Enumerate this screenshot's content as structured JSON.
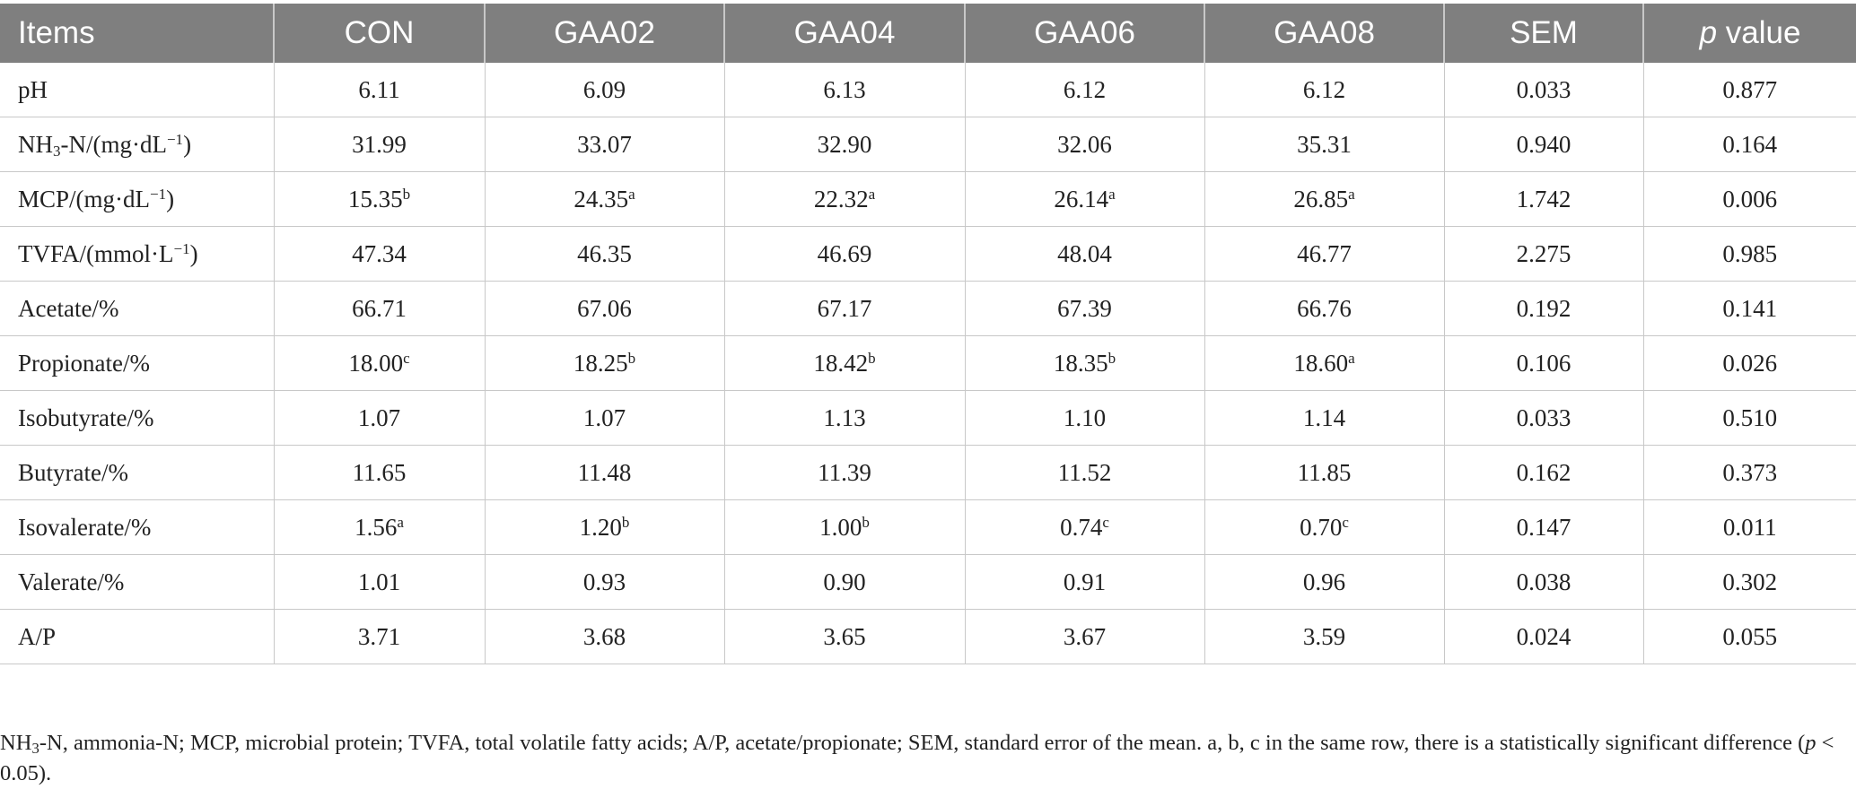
{
  "table": {
    "headers": [
      "Items",
      "CON",
      "GAA02",
      "GAA04",
      "GAA06",
      "GAA08",
      "SEM"
    ],
    "pvalue_header": {
      "italic": "p",
      "text": " value"
    },
    "rows": [
      {
        "item": {
          "text": "pH"
        },
        "cells": [
          [
            "6.11",
            ""
          ],
          [
            "6.09",
            ""
          ],
          [
            "6.13",
            ""
          ],
          [
            "6.12",
            ""
          ],
          [
            "6.12",
            ""
          ]
        ],
        "sem": "0.033",
        "p": "0.877"
      },
      {
        "item": {
          "pre": "NH",
          "sub": "3",
          "mid": "-N/(mg·dL",
          "sup": "−1",
          "post": ")"
        },
        "cells": [
          [
            "31.99",
            ""
          ],
          [
            "33.07",
            ""
          ],
          [
            "32.90",
            ""
          ],
          [
            "32.06",
            ""
          ],
          [
            "35.31",
            ""
          ]
        ],
        "sem": "0.940",
        "p": "0.164"
      },
      {
        "item": {
          "pre": "MCP/(mg·dL",
          "sup": "−1",
          "post": ")"
        },
        "cells": [
          [
            "15.35",
            "b"
          ],
          [
            "24.35",
            "a"
          ],
          [
            "22.32",
            "a"
          ],
          [
            "26.14",
            "a"
          ],
          [
            "26.85",
            "a"
          ]
        ],
        "sem": "1.742",
        "p": "0.006"
      },
      {
        "item": {
          "pre": "TVFA/(mmol·L",
          "sup": "−1",
          "post": ")"
        },
        "cells": [
          [
            "47.34",
            ""
          ],
          [
            "46.35",
            ""
          ],
          [
            "46.69",
            ""
          ],
          [
            "48.04",
            ""
          ],
          [
            "46.77",
            ""
          ]
        ],
        "sem": "2.275",
        "p": "0.985"
      },
      {
        "item": {
          "text": "Acetate/%"
        },
        "cells": [
          [
            "66.71",
            ""
          ],
          [
            "67.06",
            ""
          ],
          [
            "67.17",
            ""
          ],
          [
            "67.39",
            ""
          ],
          [
            "66.76",
            ""
          ]
        ],
        "sem": "0.192",
        "p": "0.141"
      },
      {
        "item": {
          "text": "Propionate/%"
        },
        "cells": [
          [
            "18.00",
            "c"
          ],
          [
            "18.25",
            "b"
          ],
          [
            "18.42",
            "b"
          ],
          [
            "18.35",
            "b"
          ],
          [
            "18.60",
            "a"
          ]
        ],
        "sem": "0.106",
        "p": "0.026"
      },
      {
        "item": {
          "text": "Isobutyrate/%"
        },
        "cells": [
          [
            "1.07",
            ""
          ],
          [
            "1.07",
            ""
          ],
          [
            "1.13",
            ""
          ],
          [
            "1.10",
            ""
          ],
          [
            "1.14",
            ""
          ]
        ],
        "sem": "0.033",
        "p": "0.510"
      },
      {
        "item": {
          "text": "Butyrate/%"
        },
        "cells": [
          [
            "11.65",
            ""
          ],
          [
            "11.48",
            ""
          ],
          [
            "11.39",
            ""
          ],
          [
            "11.52",
            ""
          ],
          [
            "11.85",
            ""
          ]
        ],
        "sem": "0.162",
        "p": "0.373"
      },
      {
        "item": {
          "text": "Isovalerate/%"
        },
        "cells": [
          [
            "1.56",
            "a"
          ],
          [
            "1.20",
            "b"
          ],
          [
            "1.00",
            "b"
          ],
          [
            "0.74",
            "c"
          ],
          [
            "0.70",
            "c"
          ]
        ],
        "sem": "0.147",
        "p": "0.011"
      },
      {
        "item": {
          "text": "Valerate/%"
        },
        "cells": [
          [
            "1.01",
            ""
          ],
          [
            "0.93",
            ""
          ],
          [
            "0.90",
            ""
          ],
          [
            "0.91",
            ""
          ],
          [
            "0.96",
            ""
          ]
        ],
        "sem": "0.038",
        "p": "0.302"
      },
      {
        "item": {
          "text": "A/P"
        },
        "cells": [
          [
            "3.71",
            ""
          ],
          [
            "3.68",
            ""
          ],
          [
            "3.65",
            ""
          ],
          [
            "3.67",
            ""
          ],
          [
            "3.59",
            ""
          ]
        ],
        "sem": "0.024",
        "p": "0.055"
      }
    ]
  },
  "footnote": {
    "nh": "NH",
    "sub": "3",
    "part1": "-N, ammonia-N; MCP, microbial protein; TVFA, total volatile fatty acids; A/P, acetate/propionate; SEM, standard error of the mean. a, b, c in the same row, there is a statistically significant difference (",
    "p": "p",
    "part2": " < 0.05)."
  },
  "colors": {
    "header_bg": "#7f7f7f",
    "header_text": "#ffffff",
    "grid": "#c8c8c8",
    "body_text": "#222222"
  }
}
